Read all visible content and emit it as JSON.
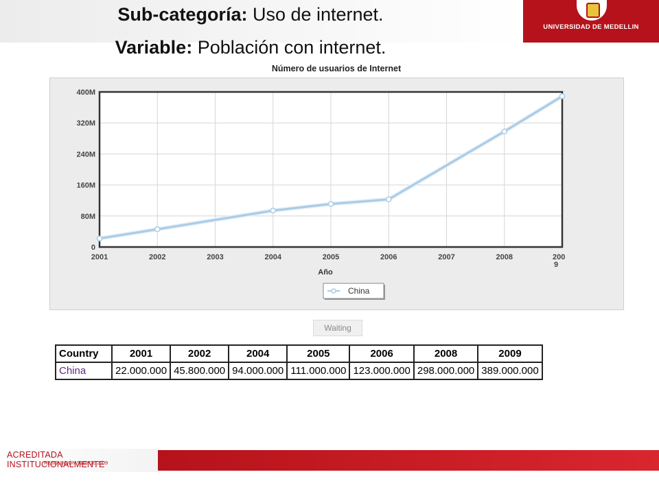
{
  "header": {
    "line1_bold": "Sub-categoría:",
    "line1_rest": " Uso de internet.",
    "line2_bold": "Variable:",
    "line2_rest": " Población con internet."
  },
  "logo": {
    "text": "UNIVERSIDAD DE MEDELLIN"
  },
  "waiting_label": "Waiting",
  "table": {
    "headers": [
      "Country",
      "2001",
      "2002",
      "2004",
      "2005",
      "2006",
      "2008",
      "2009"
    ],
    "rows": [
      [
        "China",
        "22.000.000",
        "45.800.000",
        "94.000.000",
        "111.000.000",
        "123.000.000",
        "298.000.000",
        "389.000.000"
      ]
    ]
  },
  "footer": {
    "line1": "ACREDITADA INSTITUCIONALMENTE",
    "line2": "RESOLUCIÓN 5148 DE 2009"
  },
  "chart_data": {
    "type": "line",
    "title": "Número de usuarios de Internet",
    "xlabel": "Año",
    "ylabel": "",
    "x_ticks": [
      "2001",
      "2002",
      "2003",
      "2004",
      "2005",
      "2006",
      "2007",
      "2008",
      "2009"
    ],
    "y_ticks": [
      "0",
      "80M",
      "160M",
      "240M",
      "320M",
      "400M"
    ],
    "ylim": [
      0,
      400000000
    ],
    "xlim": [
      2001,
      2009
    ],
    "grid": true,
    "legend_position": "bottom-center",
    "series": [
      {
        "name": "China",
        "color": "#a9cbe6",
        "x": [
          2001,
          2002,
          2004,
          2005,
          2006,
          2008,
          2009
        ],
        "y": [
          22000000,
          45800000,
          94000000,
          111000000,
          123000000,
          298000000,
          389000000
        ]
      }
    ]
  }
}
